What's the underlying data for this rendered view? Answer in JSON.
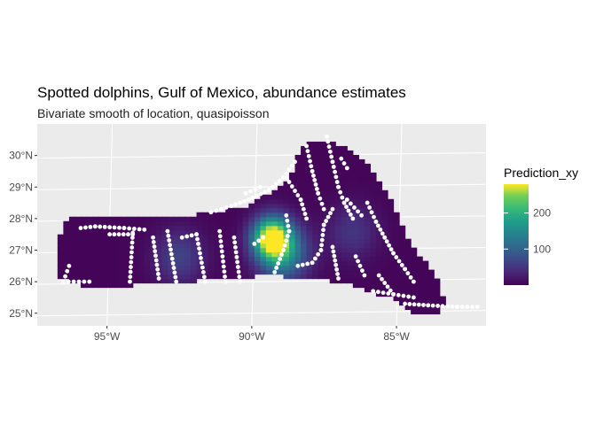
{
  "chart_data": {
    "type": "heatmap",
    "title": "Spotted dolphins, Gulf of Mexico, abundance estimates",
    "subtitle": "Bivariate smooth of location, quasipoisson",
    "xlabel": "",
    "ylabel": "",
    "x_ticks": [
      "95°W",
      "90°W",
      "85°W"
    ],
    "x_tick_values": [
      -95,
      -90,
      -85
    ],
    "y_ticks": [
      "25°N",
      "26°N",
      "27°N",
      "28°N",
      "29°N",
      "30°N"
    ],
    "y_tick_values": [
      25,
      26,
      27,
      28,
      29,
      30
    ],
    "xlim": [
      -97.5,
      -82
    ],
    "ylim": [
      24.6,
      31
    ],
    "grid": true,
    "colormap": "viridis",
    "legend": {
      "title": "Prediction_xy",
      "ticks": [
        100,
        200
      ],
      "tick_labels": [
        "100",
        "200"
      ],
      "range": [
        0,
        280
      ],
      "placement": "right"
    },
    "hotspots": [
      {
        "lon": -89.4,
        "lat": 27.4,
        "value": 280
      },
      {
        "lon": -89.0,
        "lat": 26.9,
        "value": 140
      },
      {
        "lon": -92.6,
        "lat": 26.8,
        "value": 60
      },
      {
        "lon": -86.6,
        "lat": 27.6,
        "value": 45
      }
    ],
    "baseline_value": 4,
    "region_outline": [
      [
        -96.8,
        27.3
      ],
      [
        -96.4,
        28.1
      ],
      [
        -92.8,
        28.0
      ],
      [
        -91.5,
        28.2
      ],
      [
        -90.2,
        28.4
      ],
      [
        -89.2,
        29.0
      ],
      [
        -88.7,
        29.4
      ],
      [
        -88.6,
        29.9
      ],
      [
        -88.2,
        30.35
      ],
      [
        -87.6,
        30.5
      ],
      [
        -86.9,
        30.25
      ],
      [
        -86.2,
        29.8
      ],
      [
        -85.7,
        29.2
      ],
      [
        -85.3,
        28.6
      ],
      [
        -85.0,
        27.9
      ],
      [
        -84.6,
        27.2
      ],
      [
        -84.0,
        26.5
      ],
      [
        -83.6,
        25.9
      ],
      [
        -83.4,
        25.3
      ],
      [
        -83.8,
        24.9
      ],
      [
        -84.5,
        25.0
      ],
      [
        -85.2,
        25.45
      ],
      [
        -86.0,
        25.7
      ],
      [
        -87.0,
        26.0
      ],
      [
        -88.0,
        26.1
      ],
      [
        -89.5,
        26.2
      ],
      [
        -91.0,
        26.1
      ],
      [
        -92.5,
        26.0
      ],
      [
        -94.0,
        25.9
      ],
      [
        -95.8,
        25.8
      ],
      [
        -96.9,
        26.2
      ]
    ],
    "transects": [
      [
        [
          -96.0,
          27.7
        ],
        [
          -95.5,
          27.75
        ],
        [
          -94.5,
          27.7
        ],
        [
          -93.8,
          27.65
        ]
      ],
      [
        [
          -95.0,
          27.5
        ],
        [
          -94.2,
          27.5
        ]
      ],
      [
        [
          -94.2,
          27.55
        ],
        [
          -94.3,
          26.0
        ]
      ],
      [
        [
          -96.4,
          26.5
        ],
        [
          -96.6,
          26.0
        ],
        [
          -95.7,
          26.0
        ]
      ],
      [
        [
          -93.5,
          27.4
        ],
        [
          -93.3,
          26.1
        ]
      ],
      [
        [
          -93.0,
          27.6
        ],
        [
          -92.7,
          26.0
        ]
      ],
      [
        [
          -92.5,
          27.4
        ],
        [
          -92.0,
          27.5
        ],
        [
          -91.7,
          26.0
        ]
      ],
      [
        [
          -91.2,
          27.6
        ],
        [
          -91.0,
          26.0
        ]
      ],
      [
        [
          -90.7,
          27.4
        ],
        [
          -90.5,
          26.0
        ]
      ],
      [
        [
          -90.0,
          27.2
        ],
        [
          -89.7,
          27.4
        ]
      ],
      [
        [
          -89.3,
          26.3
        ],
        [
          -89.0,
          27.0
        ],
        [
          -88.8,
          27.6
        ],
        [
          -88.9,
          28.1
        ]
      ],
      [
        [
          -88.5,
          26.5
        ],
        [
          -88.0,
          26.6
        ],
        [
          -87.7,
          27.0
        ],
        [
          -87.6,
          27.8
        ],
        [
          -87.3,
          28.3
        ]
      ],
      [
        [
          -87.3,
          27.1
        ],
        [
          -87.1,
          26.1
        ]
      ],
      [
        [
          -91.5,
          28.2
        ],
        [
          -90.8,
          28.4
        ],
        [
          -90.2,
          28.6
        ],
        [
          -89.5,
          28.9
        ],
        [
          -89.0,
          29.3
        ],
        [
          -88.6,
          29.8
        ]
      ],
      [
        [
          -90.3,
          28.8
        ],
        [
          -89.8,
          29.0
        ]
      ],
      [
        [
          -88.9,
          29.3
        ],
        [
          -88.4,
          28.6
        ],
        [
          -88.2,
          28.0
        ]
      ],
      [
        [
          -88.2,
          30.3
        ],
        [
          -88.0,
          29.5
        ],
        [
          -87.8,
          28.8
        ],
        [
          -87.6,
          28.3
        ]
      ],
      [
        [
          -87.5,
          30.6
        ],
        [
          -87.3,
          29.8
        ],
        [
          -87.1,
          29.0
        ],
        [
          -86.9,
          28.5
        ],
        [
          -86.6,
          28.0
        ]
      ],
      [
        [
          -87.0,
          29.9
        ],
        [
          -86.8,
          29.6
        ]
      ],
      [
        [
          -86.8,
          28.6
        ],
        [
          -86.3,
          28.1
        ]
      ],
      [
        [
          -86.1,
          28.5
        ],
        [
          -85.8,
          27.9
        ],
        [
          -85.5,
          27.4
        ],
        [
          -85.2,
          26.9
        ]
      ],
      [
        [
          -85.2,
          26.9
        ],
        [
          -84.8,
          26.4
        ],
        [
          -84.5,
          26.0
        ]
      ],
      [
        [
          -86.5,
          26.8
        ],
        [
          -86.2,
          26.2
        ]
      ],
      [
        [
          -85.7,
          26.2
        ],
        [
          -85.2,
          25.6
        ]
      ],
      [
        [
          -85.9,
          25.7
        ],
        [
          -85.2,
          25.6
        ],
        [
          -84.5,
          25.5
        ]
      ],
      [
        [
          -84.8,
          25.3
        ],
        [
          -84.0,
          25.25
        ],
        [
          -83.0,
          25.2
        ],
        [
          -82.3,
          25.2
        ]
      ]
    ]
  }
}
